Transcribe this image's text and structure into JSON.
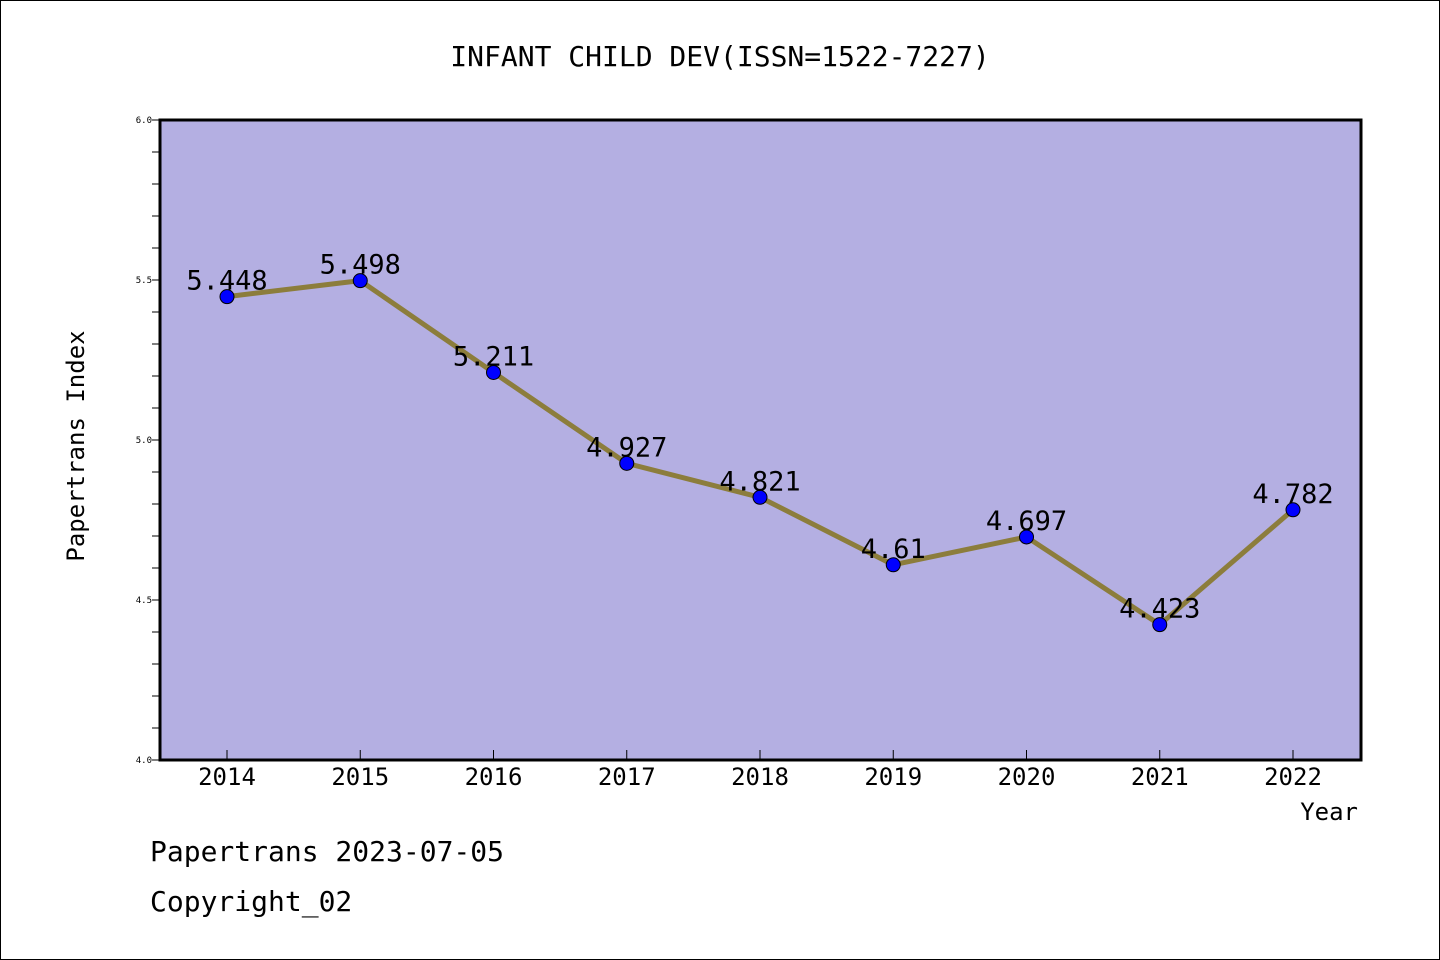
{
  "chart_data": {
    "type": "line",
    "title": "INFANT CHILD DEV(ISSN=1522-7227)",
    "xlabel": "Year",
    "ylabel": "Papertrans Index",
    "categories": [
      "2014",
      "2015",
      "2016",
      "2017",
      "2018",
      "2019",
      "2020",
      "2021",
      "2022"
    ],
    "series": [
      {
        "values": [
          5.448,
          5.498,
          5.211,
          4.927,
          4.821,
          4.61,
          4.697,
          4.423,
          4.782
        ],
        "labels": [
          "5.448",
          "5.498",
          "5.211",
          "4.927",
          "4.821",
          "4.61",
          "4.697",
          "4.423",
          "4.782"
        ]
      }
    ],
    "ylim": [
      4.0,
      6.0
    ],
    "yticks": [
      "4.0",
      "4.5",
      "5.0",
      "5.5",
      "6.0"
    ],
    "grid": false,
    "colors": {
      "plot_background": "#b4afe2",
      "line": "#8c7d3c",
      "marker": "#0000ff"
    }
  },
  "footer": {
    "line1": "Papertrans 2023-07-05",
    "line2": "Copyright_02"
  }
}
